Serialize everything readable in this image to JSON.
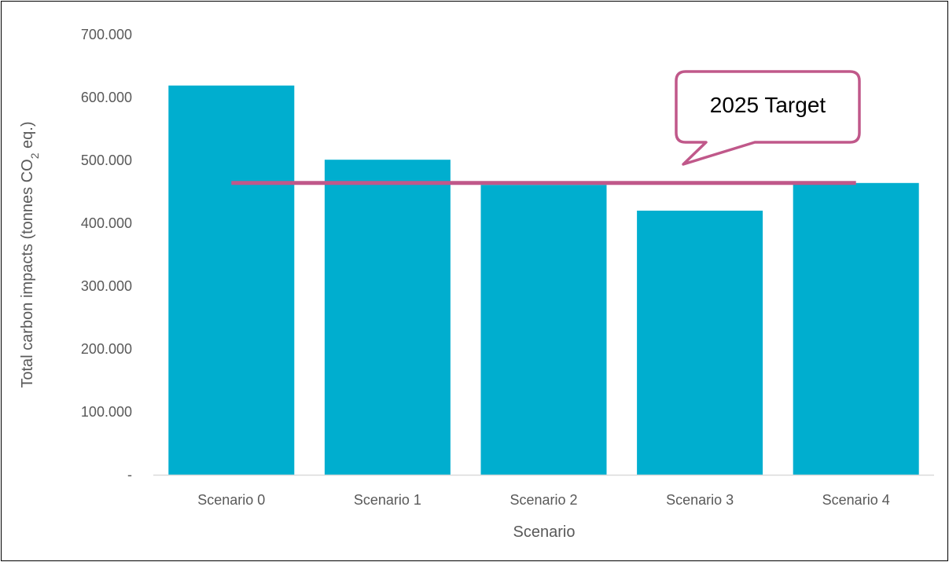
{
  "chart_data": {
    "type": "bar",
    "categories": [
      "Scenario 0",
      "Scenario 1",
      "Scenario 2",
      "Scenario 3",
      "Scenario 4"
    ],
    "values": [
      619,
      501,
      461,
      420,
      464
    ],
    "ylim": [
      0,
      700
    ],
    "yticks": [
      0,
      100,
      200,
      300,
      400,
      500,
      600,
      700
    ],
    "ytick_labels": [
      "-",
      "100.000",
      "200.000",
      "300.000",
      "400.000",
      "500.000",
      "600.000",
      "700.000"
    ],
    "xlabel": "Scenario",
    "ylabel_main": "Total carbon impacts (tonnes CO",
    "ylabel_sub": "2",
    "ylabel_tail": " eq.)",
    "target": {
      "label": "2025 Target",
      "value": 464
    },
    "colors": {
      "bar": "#00AECF",
      "target_line": "#C0588A",
      "axis": "#D9D9D9",
      "text": "#595959"
    },
    "grid": false,
    "legend": "none"
  }
}
